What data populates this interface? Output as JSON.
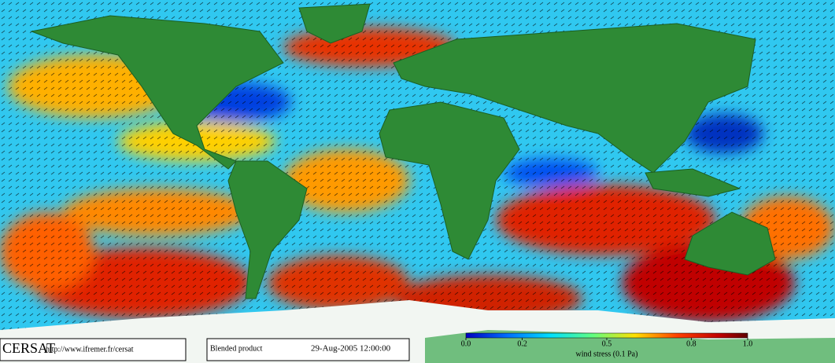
{
  "footer": {
    "logo": "CERSAT",
    "url": "http://www.ifremer.fr/cersat",
    "product": "Blended product",
    "date": "29-Aug-2005 12:00:00"
  },
  "colorbar": {
    "label": "wind stress (0.1 Pa)",
    "lim": [
      0,
      1
    ],
    "ticks": [
      {
        "value": 0,
        "label": "0.0"
      },
      0.2,
      0.5,
      0.8,
      {
        "value": 1,
        "label": "1.0"
      }
    ]
  }
}
